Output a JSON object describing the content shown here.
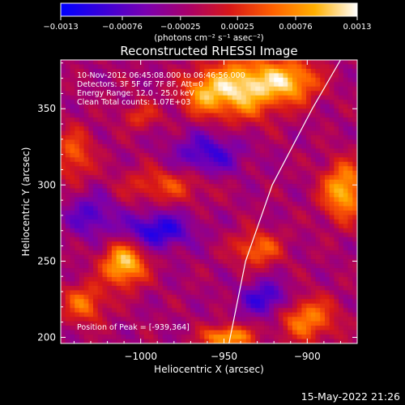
{
  "chart_data": {
    "type": "heatmap",
    "title": "Reconstructed RHESSI Image",
    "xlabel": "Heliocentric X (arcsec)",
    "ylabel": "Heliocentric Y (arcsec)",
    "xlim": [
      -1048,
      -870
    ],
    "ylim": [
      196,
      382
    ],
    "xticks": [
      -1000,
      -950,
      -900
    ],
    "xtick_labels": [
      "−1000",
      "−950",
      "−900"
    ],
    "yticks": [
      200,
      250,
      300,
      350
    ],
    "ytick_labels": [
      "200",
      "250",
      "300",
      "350"
    ],
    "colorbar": {
      "range": [
        -0.0013,
        0.0013
      ],
      "ticks": [
        -0.0013,
        -0.00076,
        -0.00025,
        0.00025,
        0.00076,
        0.0013
      ],
      "tick_labels": [
        "−0.0013",
        "−0.00076",
        "−0.00025",
        "0.00025",
        "0.00076",
        "0.0013"
      ],
      "unit_label": "(photons cm⁻² s⁻¹ asec⁻²)",
      "colors": [
        "#0000ff",
        "#3a00d8",
        "#7a00b0",
        "#a8006a",
        "#d81818",
        "#ff6000",
        "#ffb000",
        "#ffffff"
      ]
    },
    "annotations": [
      "10-Nov-2012 06:45:08.000 to 06:46:56.000",
      "Detectors: 3F 5F 6F 7F 8F, Att=0",
      "Energy Range: 12.0 - 25.0 keV",
      "Clean    Total counts: 1.07E+03"
    ],
    "peak_label": "Position of Peak = [-939,364]",
    "peak_position": [
      -939,
      364
    ],
    "limb": [
      [
        -947,
        196
      ],
      [
        -937,
        250
      ],
      [
        -921,
        300
      ],
      [
        -897,
        350
      ],
      [
        -880,
        382
      ]
    ],
    "blobs": [
      {
        "x": -938,
        "y": 364,
        "sx": 14,
        "sy": 14,
        "amp": 0.0013
      },
      {
        "x": -910,
        "y": 368,
        "sx": 12,
        "sy": 10,
        "amp": 0.0011
      },
      {
        "x": -962,
        "y": 360,
        "sx": 10,
        "sy": 10,
        "amp": 0.0009
      },
      {
        "x": -1010,
        "y": 248,
        "sx": 9,
        "sy": 10,
        "amp": 0.0013
      },
      {
        "x": -1034,
        "y": 222,
        "sx": 9,
        "sy": 9,
        "amp": 0.0008
      },
      {
        "x": -878,
        "y": 296,
        "sx": 9,
        "sy": 13,
        "amp": 0.0012
      },
      {
        "x": -900,
        "y": 212,
        "sx": 12,
        "sy": 10,
        "amp": 0.0009
      },
      {
        "x": -930,
        "y": 258,
        "sx": 10,
        "sy": 8,
        "amp": 0.0008
      },
      {
        "x": -985,
        "y": 300,
        "sx": 18,
        "sy": 8,
        "amp": 0.0006
      },
      {
        "x": -1040,
        "y": 320,
        "sx": 8,
        "sy": 12,
        "amp": 0.0007
      },
      {
        "x": -948,
        "y": 200,
        "sx": 10,
        "sy": 5,
        "amp": 0.0012
      },
      {
        "x": -1000,
        "y": 345,
        "sx": 8,
        "sy": 6,
        "amp": 0.0005
      },
      {
        "x": -990,
        "y": 270,
        "sx": 14,
        "sy": 8,
        "amp": -0.0009
      },
      {
        "x": -960,
        "y": 320,
        "sx": 14,
        "sy": 10,
        "amp": -0.0007
      },
      {
        "x": -925,
        "y": 225,
        "sx": 10,
        "sy": 8,
        "amp": -0.0008
      },
      {
        "x": -1030,
        "y": 280,
        "sx": 10,
        "sy": 10,
        "amp": -0.0006
      }
    ]
  },
  "footer": {
    "date": "15-May-2022 21:26"
  }
}
